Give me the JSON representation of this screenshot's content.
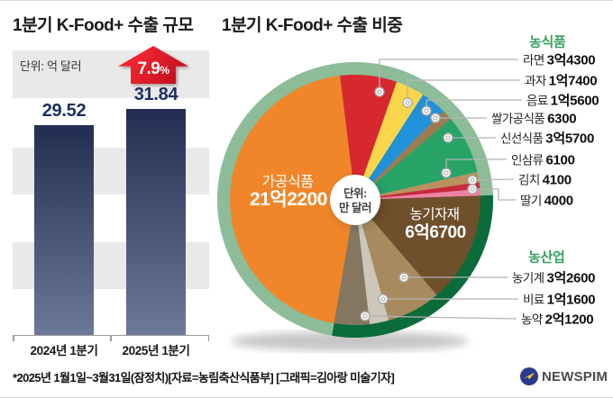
{
  "footer": {
    "note": "*2025년 1월1일~3월31일(잠정치)[자료=농림축산식품부] [그래픽=김아랑 미술기자]"
  },
  "logo": {
    "text": "NEWSPIM",
    "icon": "paper-plane-icon",
    "icon_colors": {
      "circle": "#2c3a8c",
      "plane": "#f2c531"
    }
  },
  "chart_data": [
    {
      "type": "bar",
      "title": "1분기 K-Food+ 수출 규모",
      "unit": "단위: 억 달러",
      "categories": [
        "2024년 1분기",
        "2025년 1분기"
      ],
      "values": [
        29.52,
        31.84
      ],
      "value_labels": [
        "29.52",
        "31.84"
      ],
      "change_label": "7.9",
      "change_suffix": "%",
      "ylim": [
        0,
        31.84
      ],
      "grid": "horizontal-stripes",
      "colors": {
        "bar_top": "#232d51",
        "bar_bottom": "#6d7998",
        "value_text": "#1c3161",
        "arrow": "#e51b29",
        "stripe": "#e9e9e9"
      }
    },
    {
      "type": "pie",
      "title": "1분기 K-Food+ 수출 비중",
      "unit_lines": [
        "단위:",
        "만 달러"
      ],
      "start_angle_deg": -7,
      "slices": [
        {
          "name": "라면",
          "value": 34300,
          "display": "3억4300",
          "color": "#d7282f",
          "group": "농식품"
        },
        {
          "name": "과자",
          "value": 17400,
          "display": "1억7400",
          "color": "#f9d64b",
          "group": "농식품"
        },
        {
          "name": "음료",
          "value": 15600,
          "display": "1억5600",
          "color": "#2191d9",
          "group": "농식품"
        },
        {
          "name": "쌀가공식품",
          "value": 6300,
          "display": "6300",
          "color": "#9d7b51",
          "group": "농식품"
        },
        {
          "name": "신선식품",
          "value": 35700,
          "display": "3억5700",
          "color": "#27a366",
          "group": "농식품"
        },
        {
          "name": "인삼류",
          "value": 6100,
          "display": "6100",
          "color": "#b9915d",
          "group": "농식품"
        },
        {
          "name": "김치",
          "value": 4100,
          "display": "4100",
          "color": "#c9293c",
          "group": "농식품"
        },
        {
          "name": "딸기",
          "value": 4000,
          "display": "4000",
          "color": "#ee82a5",
          "group": "농식품"
        },
        {
          "name": "농기자재",
          "value": 66700,
          "display": "6억6700",
          "color": "#6f4f2c",
          "group": "농산업",
          "label_inside": true
        },
        {
          "name": "농기계",
          "value": 32600,
          "display": "3억2600",
          "color": "#a98a5e",
          "group": "농산업"
        },
        {
          "name": "비료",
          "value": 11600,
          "display": "1억1600",
          "color": "#cdc6ba",
          "group": "농산업"
        },
        {
          "name": "농약",
          "value": 21200,
          "display": "2억1200",
          "color": "#85775f",
          "group": "농산업"
        },
        {
          "name": "가공식품",
          "value": 212200,
          "display": "21억2200",
          "color": "#f08629",
          "group": "농식품",
          "label_inside": true
        }
      ],
      "legend_groups": [
        {
          "title": "농식품",
          "slice_indexes": [
            0,
            1,
            2,
            3,
            4,
            5,
            6,
            7
          ]
        },
        {
          "title": "농산업",
          "slice_indexes": [
            9,
            10,
            11
          ]
        }
      ],
      "ring_colors": {
        "light": "#8cbc98",
        "dark": "#0a6c3a"
      },
      "legend_header_color": "#35a35d"
    }
  ]
}
